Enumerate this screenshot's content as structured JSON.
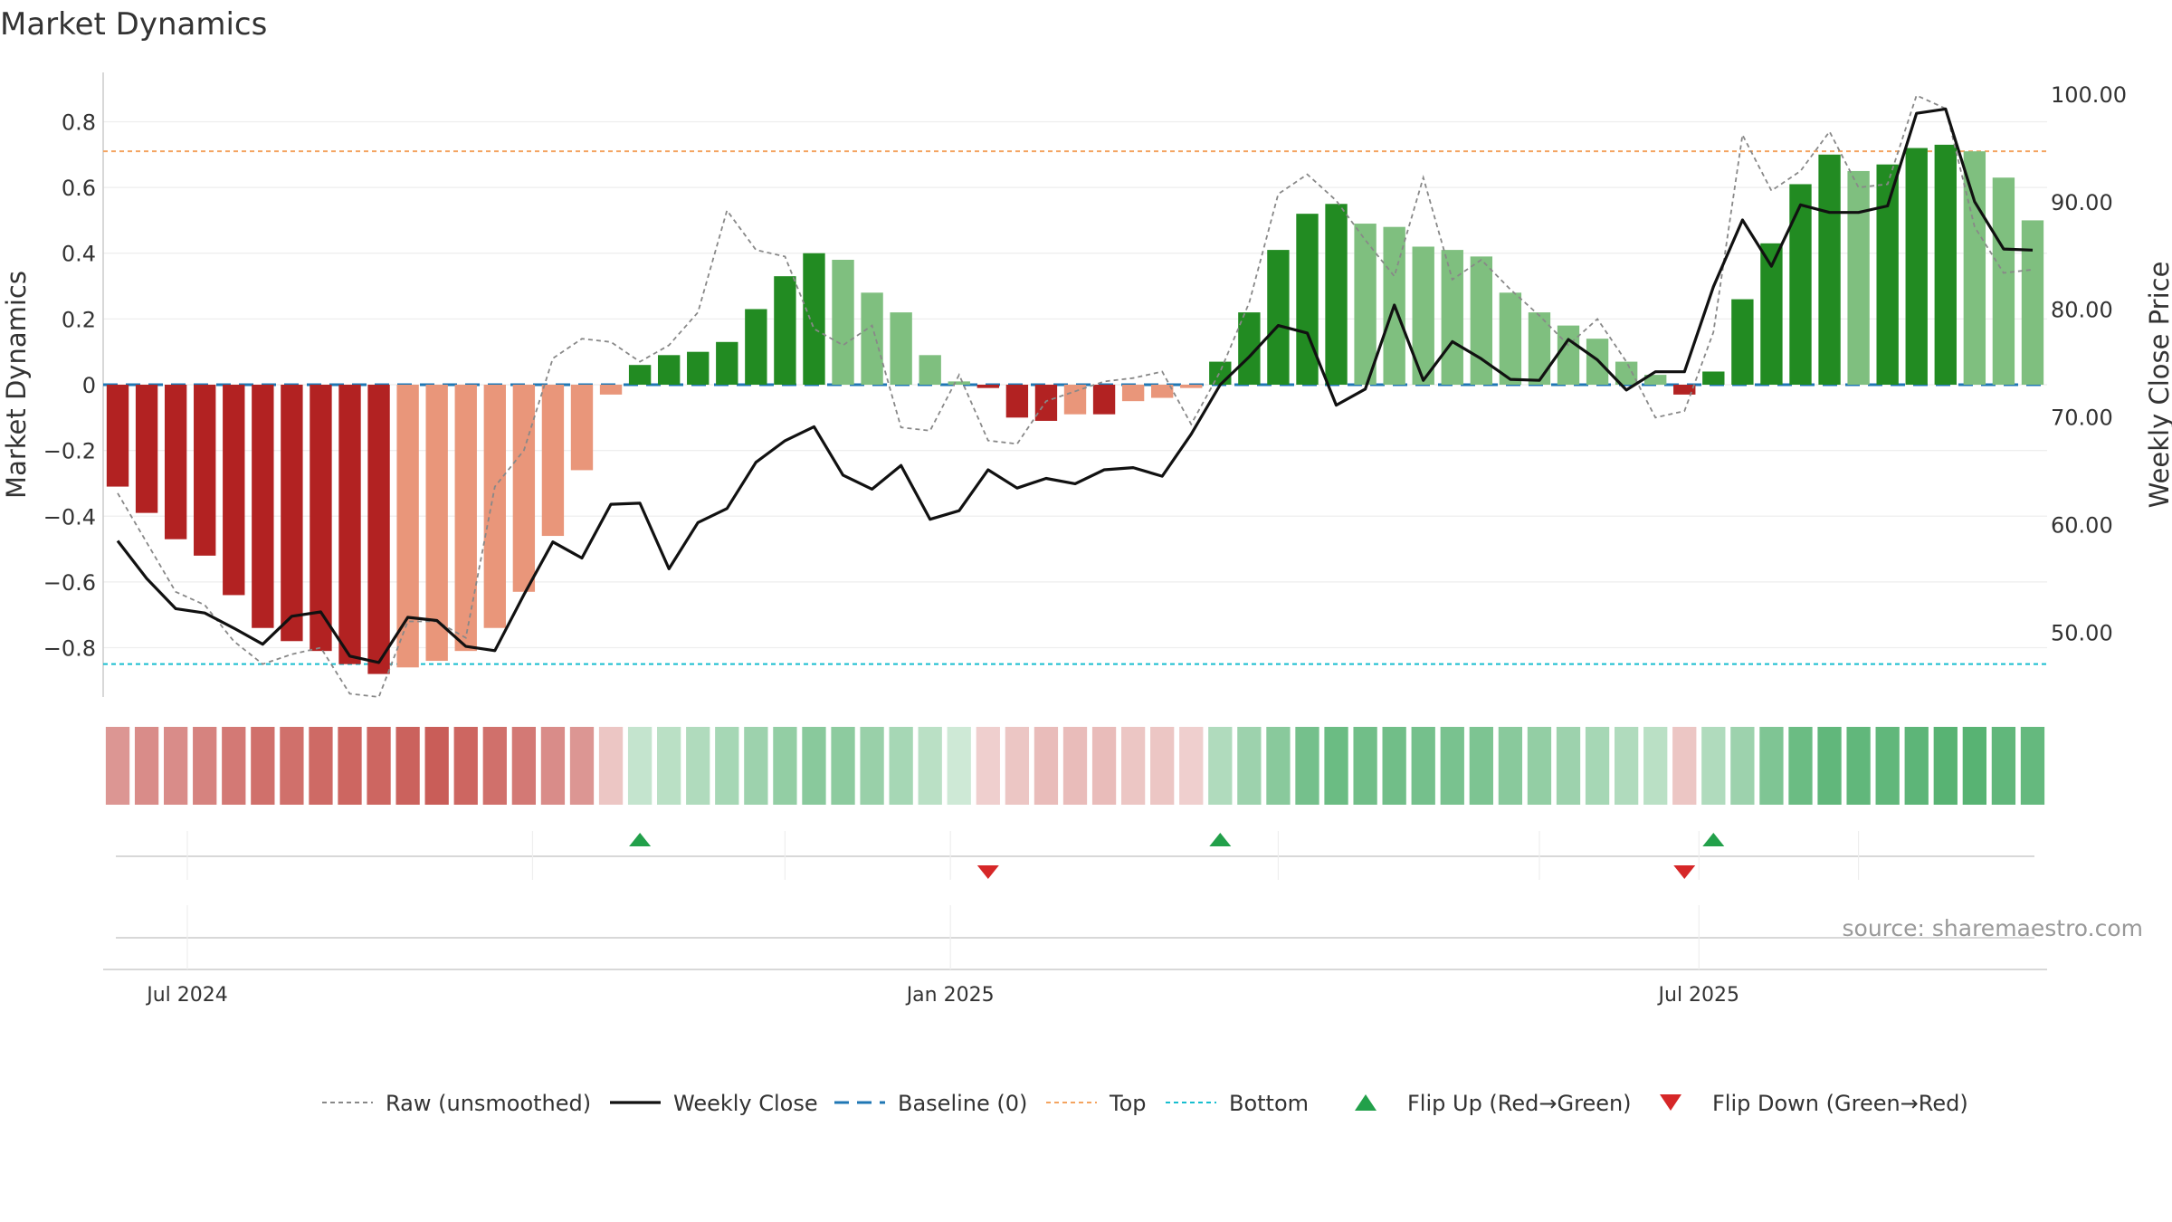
{
  "chart_data": {
    "type": "bar",
    "title": "Market Dynamics",
    "ylabel_left": "Market Dynamics",
    "ylabel_right": "Weekly Close Price",
    "ylim_left": [
      -0.95,
      0.95
    ],
    "ylim_right": [
      44,
      102
    ],
    "y_ticks_left": [
      "0.8",
      "0.6",
      "0.4",
      "0.2",
      "0",
      "−0.2",
      "−0.4",
      "−0.6",
      "−0.8"
    ],
    "y_tick_values_left": [
      0.8,
      0.6,
      0.4,
      0.2,
      0,
      -0.2,
      -0.4,
      -0.6,
      -0.8
    ],
    "y_ticks_right": [
      "100.00",
      "90.00",
      "80.00",
      "70.00",
      "60.00",
      "50.00"
    ],
    "y_tick_values_right": [
      100,
      90,
      80,
      70,
      60,
      50
    ],
    "x_tick_labels": [
      "Jul 2024",
      "Jan 2025",
      "Jul 2025"
    ],
    "x_tick_index": [
      2.4,
      28.7,
      54.5
    ],
    "grid": true,
    "legend_position": "bottom-center",
    "source": "source: sharemaestro.com",
    "reference_lines": {
      "baseline": 0,
      "top": 0.71,
      "bottom": -0.85
    },
    "colors": {
      "strong_negative": "#b22222",
      "weak_negative": "#e9967a",
      "strong_positive": "#228b22",
      "weak_positive": "#7fbf7f",
      "weekly_close": "#111111",
      "raw": "#888888",
      "baseline": "#1f77b4",
      "top": "#f4a460",
      "bottom": "#17becf",
      "flip_up": "#22a04a",
      "flip_down": "#d62728"
    },
    "series": [
      {
        "name": "Market Dynamics",
        "values": [
          -0.31,
          -0.39,
          -0.47,
          -0.52,
          -0.64,
          -0.74,
          -0.78,
          -0.81,
          -0.85,
          -0.88,
          -0.86,
          -0.84,
          -0.81,
          -0.74,
          -0.63,
          -0.46,
          -0.26,
          -0.03,
          0.06,
          0.09,
          0.1,
          0.13,
          0.23,
          0.33,
          0.4,
          0.38,
          0.28,
          0.22,
          0.09,
          0.01,
          -0.01,
          -0.1,
          -0.11,
          -0.09,
          -0.09,
          -0.05,
          -0.04,
          -0.01,
          0.07,
          0.22,
          0.41,
          0.52,
          0.55,
          0.49,
          0.48,
          0.42,
          0.41,
          0.39,
          0.28,
          0.22,
          0.18,
          0.14,
          0.07,
          0.03,
          -0.03,
          0.04,
          0.26,
          0.43,
          0.61,
          0.7,
          0.65,
          0.67,
          0.72,
          0.73,
          0.71,
          0.63,
          0.5
        ]
      },
      {
        "name": "Weekly Close",
        "values": [
          58.5,
          55.0,
          52.2,
          51.8,
          50.4,
          48.9,
          51.5,
          51.9,
          47.8,
          47.2,
          51.4,
          51.1,
          48.7,
          48.3,
          53.5,
          58.4,
          56.9,
          61.9,
          62.0,
          55.9,
          60.2,
          61.5,
          65.8,
          67.8,
          69.1,
          64.6,
          63.3,
          65.5,
          60.5,
          61.3,
          65.1,
          63.4,
          64.3,
          63.8,
          65.1,
          65.3,
          64.5,
          68.4,
          73.0,
          75.6,
          78.5,
          77.8,
          71.1,
          72.6,
          80.4,
          73.4,
          77.0,
          75.4,
          73.5,
          73.4,
          77.2,
          75.3,
          72.5,
          74.2,
          74.2,
          82.1,
          88.3,
          84.0,
          89.7,
          89.0,
          89.0,
          89.6,
          98.2,
          98.6,
          90.0,
          85.6,
          85.5
        ]
      },
      {
        "name": "Raw (unsmoothed)",
        "values": [
          -0.33,
          -0.48,
          -0.63,
          -0.67,
          -0.78,
          -0.85,
          -0.82,
          -0.8,
          -0.94,
          -0.95,
          -0.72,
          -0.72,
          -0.77,
          -0.31,
          -0.2,
          0.08,
          0.14,
          0.13,
          0.07,
          0.12,
          0.22,
          0.53,
          0.41,
          0.39,
          0.17,
          0.12,
          0.18,
          -0.13,
          -0.14,
          0.03,
          -0.17,
          -0.18,
          -0.05,
          -0.02,
          0.01,
          0.02,
          0.04,
          -0.12,
          0.04,
          0.25,
          0.58,
          0.64,
          0.56,
          0.44,
          0.33,
          0.63,
          0.32,
          0.38,
          0.29,
          0.21,
          0.12,
          0.2,
          0.07,
          -0.1,
          -0.08,
          0.16,
          0.76,
          0.59,
          0.65,
          0.77,
          0.6,
          0.61,
          0.88,
          0.84,
          0.48,
          0.34,
          0.35
        ]
      }
    ],
    "strip_intensity": [
      0.55,
      0.6,
      0.6,
      0.65,
      0.7,
      0.75,
      0.75,
      0.78,
      0.8,
      0.8,
      0.82,
      0.85,
      0.8,
      0.75,
      0.7,
      0.6,
      0.55,
      0.3,
      0.3,
      0.35,
      0.4,
      0.45,
      0.5,
      0.55,
      0.6,
      0.58,
      0.52,
      0.45,
      0.35,
      0.25,
      0.25,
      0.3,
      0.35,
      0.35,
      0.35,
      0.3,
      0.3,
      0.25,
      0.4,
      0.5,
      0.6,
      0.7,
      0.75,
      0.72,
      0.72,
      0.7,
      0.68,
      0.66,
      0.6,
      0.55,
      0.5,
      0.45,
      0.4,
      0.35,
      0.3,
      0.4,
      0.5,
      0.65,
      0.75,
      0.8,
      0.8,
      0.8,
      0.82,
      0.85,
      0.85,
      0.8,
      0.78
    ],
    "flip_up_index": [
      18,
      38,
      55
    ],
    "flip_down_index": [
      30,
      54
    ],
    "legend": [
      {
        "label": "Raw (unsmoothed)",
        "marker": "dotted-line",
        "color": "#888888"
      },
      {
        "label": "Weekly Close",
        "marker": "solid-line",
        "color": "#111111"
      },
      {
        "label": "Baseline (0)",
        "marker": "dashed-line",
        "color": "#1f77b4"
      },
      {
        "label": "Top",
        "marker": "dotted-line",
        "color": "#f4a460"
      },
      {
        "label": "Bottom",
        "marker": "dotted-line",
        "color": "#17becf"
      },
      {
        "label": "Flip Up (Red→Green)",
        "marker": "triangle-up",
        "color": "#22a04a"
      },
      {
        "label": "Flip Down (Green→Red)",
        "marker": "triangle-down",
        "color": "#d62728"
      }
    ]
  }
}
